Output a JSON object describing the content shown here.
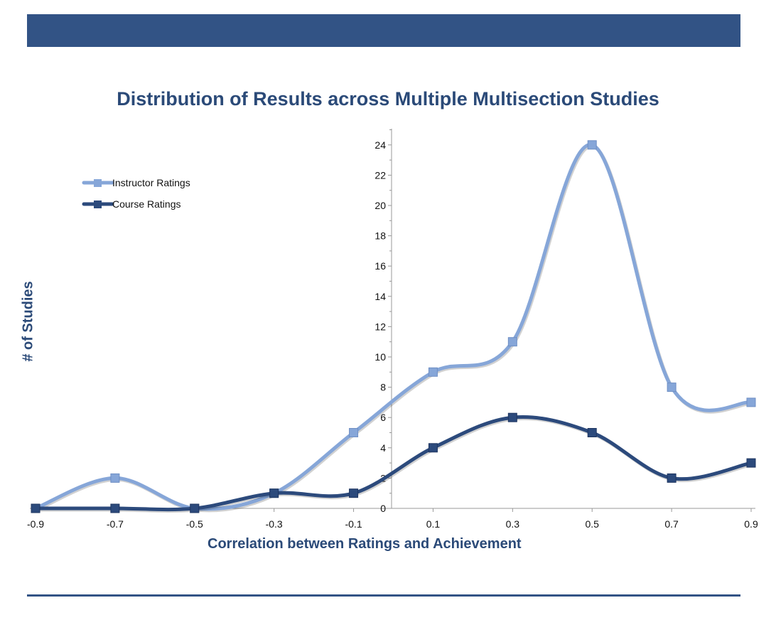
{
  "chart_data": {
    "type": "line",
    "title": "Distribution of Results across Multiple Multisection Studies",
    "xlabel": "Correlation between Ratings and Achievement",
    "ylabel": "# of Studies",
    "x": [
      -0.9,
      -0.7,
      -0.5,
      -0.3,
      -0.1,
      0.1,
      0.3,
      0.5,
      0.7,
      0.9
    ],
    "x_tick_labels": [
      "-0.9",
      "-0.7",
      "-0.5",
      "-0.3",
      "-0.1",
      "0.1",
      "0.3",
      "0.5",
      "0.7",
      "0.9"
    ],
    "y_ticks": [
      0,
      2,
      4,
      6,
      8,
      10,
      12,
      14,
      16,
      18,
      20,
      22,
      24
    ],
    "y_tick_labels": [
      "0",
      "2",
      "4",
      "6",
      "8",
      "10",
      "12",
      "14",
      "16",
      "18",
      "20",
      "22",
      "24"
    ],
    "xlim": [
      -0.9,
      0.9
    ],
    "ylim": [
      0,
      25
    ],
    "smoothed": true,
    "legend_position": "top-left",
    "series": [
      {
        "name": "Instructor Ratings",
        "color": "#86a6d8",
        "values": [
          0,
          2,
          0,
          1,
          5,
          9,
          11,
          24,
          8,
          7
        ]
      },
      {
        "name": "Course Ratings",
        "color": "#2c4a7c",
        "values": [
          0,
          0,
          0,
          1,
          1,
          4,
          6,
          5,
          2,
          3
        ]
      }
    ]
  },
  "colors": {
    "banner": "#325385",
    "title": "#2b4a78"
  }
}
